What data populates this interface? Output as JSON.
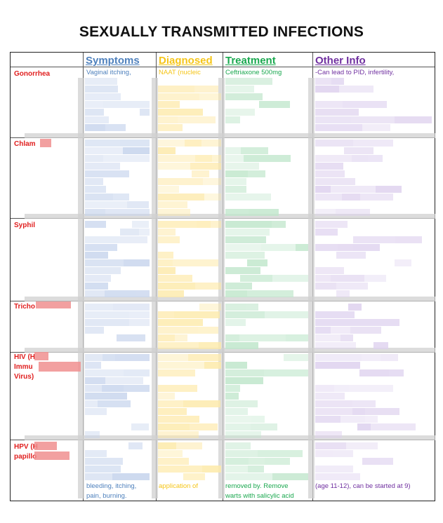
{
  "title": "SEXUALLY TRANSMITTED INFECTIONS",
  "colors": {
    "symptoms": "#4f81bd",
    "diagnosed": "#f5c518",
    "treatment": "#1aa84f",
    "other": "#7030a0",
    "row_label": "#e01e1e"
  },
  "headers": {
    "symptoms": "Symptoms",
    "diagnosed": "Diagnosed",
    "treatment": "Treatment",
    "other": "Other Info"
  },
  "rows": [
    {
      "label": "Gonorrhea",
      "symptoms": "Vaginal itching,",
      "diagnosed": "NAAT (nucleic",
      "treatment": "Ceftriaxone 500mg",
      "other": "-Can lead to PID, infertility,"
    },
    {
      "label": "Chlam"
    },
    {
      "label": "Syphil"
    },
    {
      "label": "Tricho"
    },
    {
      "label": "HIV (H",
      "label_2": "Immu",
      "label_3": "Virus)"
    },
    {
      "label": "HPV (H",
      "label_2": "papillo",
      "symptoms_2": "bleeding, itching,",
      "symptoms_3": "pain, burning.",
      "diagnosed_2": "application of",
      "treatment_2": "removed by. Remove",
      "treatment_3": "warts with salicylic acid",
      "other_2": "(age 11-12), can be started at 9)"
    }
  ]
}
